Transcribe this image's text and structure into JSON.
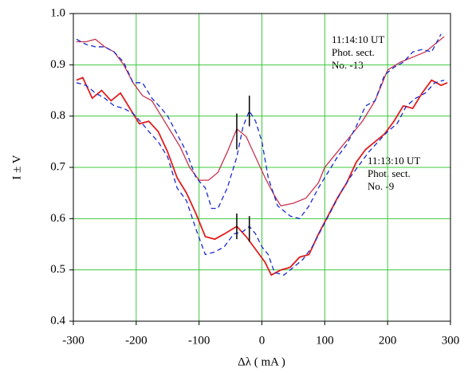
{
  "chart_data": {
    "type": "line",
    "x_label": "Δλ ( mA )",
    "y_label": "I ± V",
    "xlim": [
      -300,
      300
    ],
    "xticks": [
      -300,
      -200,
      -100,
      0,
      100,
      200,
      300
    ],
    "ylim": [
      0.4,
      1
    ],
    "yticks": [
      0.4,
      0.5,
      0.6,
      0.7,
      0.8,
      0.9,
      {
        "value": 1,
        "label": "1.0"
      }
    ],
    "grid": true,
    "grid_color": "#3cc83c",
    "annotations": [
      [
        "11:14:10 UT",
        "Phot. sect.",
        "No. -13"
      ],
      [
        "11:13:10 UT",
        "Phot. sect.",
        "No. -9"
      ]
    ],
    "series": [
      {
        "color": "#c83250",
        "width": 1.3,
        "dashed": false,
        "x": [
          -295,
          -280,
          -265,
          -250,
          -235,
          -220,
          -205,
          -190,
          -175,
          -160,
          -145,
          -130,
          -115,
          -100,
          -85,
          -70,
          -55,
          -40,
          -25,
          -10,
          5,
          20,
          30,
          50,
          70,
          90,
          100,
          120,
          140,
          160,
          180,
          200,
          220,
          240,
          260,
          280,
          290
        ],
        "values": [
          0.945,
          0.945,
          0.95,
          0.935,
          0.925,
          0.9,
          0.865,
          0.84,
          0.83,
          0.8,
          0.77,
          0.74,
          0.7,
          0.675,
          0.675,
          0.69,
          0.73,
          0.775,
          0.76,
          0.72,
          0.68,
          0.645,
          0.625,
          0.63,
          0.64,
          0.67,
          0.7,
          0.73,
          0.76,
          0.79,
          0.83,
          0.89,
          0.905,
          0.915,
          0.925,
          0.945,
          0.955
        ]
      },
      {
        "color": "#1a2ad0",
        "width": 1.3,
        "dashed": true,
        "x": [
          -295,
          -280,
          -265,
          -250,
          -235,
          -220,
          -205,
          -190,
          -175,
          -160,
          -150,
          -135,
          -120,
          -105,
          -90,
          -80,
          -70,
          -55,
          -40,
          -30,
          -20,
          -10,
          0,
          10,
          25,
          45,
          60,
          75,
          90,
          105,
          120,
          135,
          150,
          165,
          180,
          195,
          210,
          225,
          240,
          255,
          270,
          285
        ],
        "values": [
          0.95,
          0.94,
          0.935,
          0.935,
          0.925,
          0.905,
          0.865,
          0.865,
          0.835,
          0.815,
          0.8,
          0.765,
          0.73,
          0.68,
          0.66,
          0.62,
          0.62,
          0.66,
          0.72,
          0.78,
          0.81,
          0.79,
          0.75,
          0.68,
          0.625,
          0.605,
          0.6,
          0.625,
          0.66,
          0.69,
          0.72,
          0.745,
          0.78,
          0.82,
          0.83,
          0.88,
          0.895,
          0.905,
          0.925,
          0.93,
          0.925,
          0.96
        ]
      },
      {
        "color": "#e01e1e",
        "width": 1.8,
        "dashed": false,
        "x": [
          -295,
          -285,
          -270,
          -255,
          -240,
          -225,
          -210,
          -195,
          -180,
          -165,
          -150,
          -135,
          -120,
          -105,
          -90,
          -75,
          -60,
          -40,
          -25,
          -10,
          5,
          15,
          30,
          45,
          60,
          75,
          90,
          105,
          120,
          135,
          150,
          165,
          180,
          195,
          210,
          225,
          240,
          255,
          270,
          285,
          295
        ],
        "values": [
          0.87,
          0.875,
          0.835,
          0.85,
          0.83,
          0.845,
          0.815,
          0.785,
          0.79,
          0.77,
          0.73,
          0.68,
          0.65,
          0.61,
          0.565,
          0.56,
          0.57,
          0.585,
          0.565,
          0.54,
          0.515,
          0.49,
          0.5,
          0.505,
          0.525,
          0.53,
          0.57,
          0.605,
          0.64,
          0.67,
          0.71,
          0.735,
          0.75,
          0.765,
          0.79,
          0.82,
          0.815,
          0.845,
          0.87,
          0.86,
          0.865
        ]
      },
      {
        "color": "#1a2ad0",
        "width": 1.3,
        "dashed": true,
        "x": [
          -295,
          -280,
          -265,
          -250,
          -235,
          -220,
          -205,
          -190,
          -180,
          -165,
          -150,
          -135,
          -120,
          -105,
          -90,
          -75,
          -60,
          -45,
          -30,
          -20,
          -10,
          0,
          10,
          20,
          35,
          50,
          65,
          80,
          95,
          110,
          125,
          140,
          155,
          170,
          185,
          200,
          215,
          230,
          245,
          260,
          275,
          290
        ],
        "values": [
          0.865,
          0.86,
          0.845,
          0.835,
          0.82,
          0.815,
          0.805,
          0.785,
          0.77,
          0.75,
          0.72,
          0.66,
          0.635,
          0.58,
          0.53,
          0.535,
          0.545,
          0.57,
          0.575,
          0.585,
          0.57,
          0.545,
          0.53,
          0.495,
          0.49,
          0.505,
          0.52,
          0.545,
          0.58,
          0.615,
          0.65,
          0.68,
          0.705,
          0.73,
          0.75,
          0.77,
          0.785,
          0.82,
          0.835,
          0.845,
          0.865,
          0.87
        ]
      }
    ],
    "error_bars": {
      "x": [
        -40,
        -20,
        -40,
        -20
      ],
      "values": [
        0.77,
        0.81,
        0.585,
        0.58
      ],
      "errors": [
        0.035,
        0.03,
        0.025,
        0.025
      ]
    }
  }
}
